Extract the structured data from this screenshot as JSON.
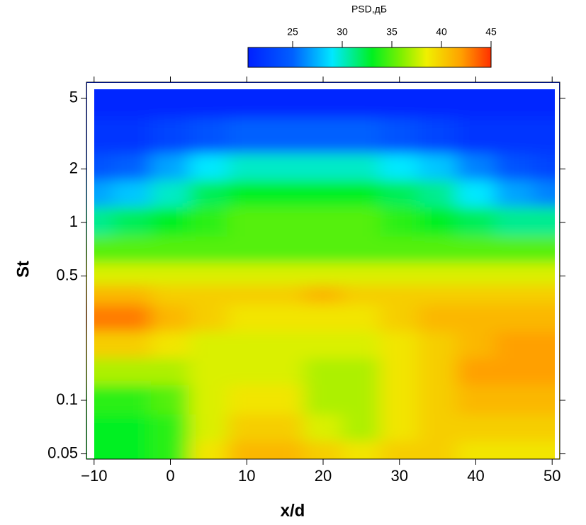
{
  "chart_data": {
    "type": "heatmap",
    "xlabel": "x/d",
    "ylabel": "St",
    "xlim": [
      -11,
      51
    ],
    "ylim": [
      0.0467,
      6.15
    ],
    "ylog": true,
    "xticks": [
      {
        "value": -10,
        "label": "−10"
      },
      0,
      10,
      20,
      30,
      40,
      50
    ],
    "yticks": [
      0.05,
      0.1,
      0.5,
      1,
      2,
      5
    ],
    "x": [
      -10,
      -5,
      0,
      5,
      10,
      15,
      20,
      25,
      30,
      35,
      40,
      45,
      50
    ],
    "y": [
      0.05,
      0.07,
      0.1,
      0.15,
      0.2,
      0.3,
      0.4,
      0.5,
      0.7,
      1,
      1.5,
      2,
      3,
      5
    ],
    "z": [
      [
        33,
        33,
        34,
        39,
        41,
        41,
        40,
        39,
        40,
        40,
        39,
        39,
        39
      ],
      [
        33,
        33,
        34,
        38,
        40,
        40,
        38,
        37,
        39,
        40,
        40,
        40,
        40
      ],
      [
        34,
        34,
        35,
        38,
        39,
        39,
        37,
        37,
        39,
        40,
        41,
        41,
        41
      ],
      [
        37,
        37,
        37,
        38,
        38,
        38,
        37,
        37,
        39,
        40,
        42,
        42,
        42
      ],
      [
        40,
        40,
        39,
        38,
        38,
        38,
        38,
        38,
        39,
        40,
        41,
        42,
        42
      ],
      [
        43,
        43,
        41,
        40,
        39,
        39,
        39,
        39,
        40,
        41,
        41,
        41,
        41
      ],
      [
        41,
        41,
        40,
        40,
        40,
        40,
        41,
        40,
        40,
        40,
        40,
        40,
        40
      ],
      [
        38,
        38,
        38,
        38,
        38,
        38,
        38,
        38,
        38,
        38,
        38,
        38,
        38
      ],
      [
        35,
        35,
        35,
        35,
        35,
        35,
        35,
        35,
        35,
        35,
        35,
        35,
        35
      ],
      [
        31,
        32,
        33,
        34,
        35,
        35,
        35,
        35,
        34,
        33,
        32,
        31,
        31
      ],
      [
        27,
        28,
        30,
        32,
        33,
        33,
        33,
        33,
        32,
        31,
        29,
        27,
        26
      ],
      [
        24,
        25,
        27,
        29,
        30,
        30,
        30,
        30,
        29,
        28,
        26,
        24,
        23
      ],
      [
        22,
        22,
        23,
        24,
        25,
        25,
        25,
        25,
        24,
        23,
        22,
        22,
        22
      ],
      [
        21,
        21,
        21,
        21,
        21,
        21,
        21,
        21,
        21,
        21,
        21,
        21,
        21
      ]
    ],
    "colorbar": {
      "label": "PSD,дБ",
      "clim": [
        20.5,
        45
      ],
      "ticks": [
        25,
        30,
        35,
        40,
        45
      ]
    },
    "colorscale": [
      [
        20.5,
        "#0020ff"
      ],
      [
        25,
        "#0060ff"
      ],
      [
        29,
        "#00e8ff"
      ],
      [
        33,
        "#00f020"
      ],
      [
        36,
        "#80f000"
      ],
      [
        38.5,
        "#f0f000"
      ],
      [
        42,
        "#ffa000"
      ],
      [
        45,
        "#ff3000"
      ]
    ]
  }
}
